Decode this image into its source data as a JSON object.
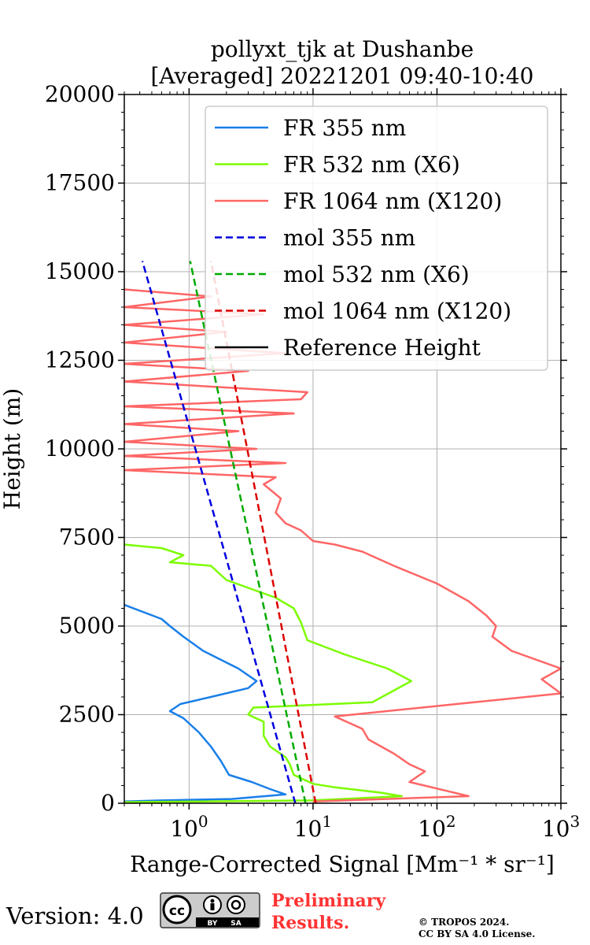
{
  "chart_data": {
    "type": "line",
    "title": [
      "pollyxt_tjk at Dushanbe",
      "[Averaged] 20221201 09:40-10:40"
    ],
    "xlabel": "Range-Corrected Signal",
    "xlabel_unit": "[Mm⁻¹ * sr⁻¹]",
    "ylabel": "Height (m)",
    "xscale": "log",
    "xlim": [
      0.3,
      1000
    ],
    "ylim": [
      0,
      20000
    ],
    "grid": true,
    "legend_position": "top-right",
    "yticks": [
      "0",
      "2500",
      "5000",
      "7500",
      "10000",
      "12500",
      "15000",
      "17500",
      "20000"
    ],
    "xticks": [
      {
        "base": "10",
        "exp": "0"
      },
      {
        "base": "10",
        "exp": "1"
      },
      {
        "base": "10",
        "exp": "2"
      },
      {
        "base": "10",
        "exp": "3"
      }
    ],
    "series": [
      {
        "name": "FR 355 nm",
        "color": "#1a7fe8",
        "style": "solid",
        "points": [
          [
            0.3,
            50
          ],
          [
            0.6,
            80
          ],
          [
            2.2,
            120
          ],
          [
            6.0,
            250
          ],
          [
            4.5,
            400
          ],
          [
            3.2,
            600
          ],
          [
            2.1,
            800
          ],
          [
            1.8,
            1200
          ],
          [
            1.5,
            1600
          ],
          [
            1.2,
            2000
          ],
          [
            0.9,
            2400
          ],
          [
            0.7,
            2600
          ],
          [
            0.85,
            2800
          ],
          [
            1.5,
            3000
          ],
          [
            3.0,
            3250
          ],
          [
            3.5,
            3450
          ],
          [
            2.5,
            3800
          ],
          [
            1.3,
            4300
          ],
          [
            0.9,
            4700
          ],
          [
            0.7,
            5000
          ],
          [
            0.6,
            5200
          ],
          [
            0.3,
            5600
          ]
        ]
      },
      {
        "name": "FR 532 nm (X6)",
        "color": "#7cfc00",
        "style": "solid",
        "points": [
          [
            0.3,
            30
          ],
          [
            10,
            80
          ],
          [
            52,
            200
          ],
          [
            35,
            300
          ],
          [
            15,
            450
          ],
          [
            10,
            550
          ],
          [
            7,
            800
          ],
          [
            6.5,
            1100
          ],
          [
            6,
            1300
          ],
          [
            4.5,
            1600
          ],
          [
            4,
            1900
          ],
          [
            4,
            2300
          ],
          [
            3,
            2500
          ],
          [
            3.3,
            2700
          ],
          [
            30,
            2850
          ],
          [
            62,
            3450
          ],
          [
            40,
            3800
          ],
          [
            18,
            4200
          ],
          [
            9,
            4600
          ],
          [
            8,
            5100
          ],
          [
            7,
            5500
          ],
          [
            5,
            5800
          ],
          [
            2,
            6300
          ],
          [
            1.5,
            6700
          ],
          [
            0.7,
            6800
          ],
          [
            0.9,
            7000
          ],
          [
            0.6,
            7200
          ],
          [
            0.3,
            7300
          ]
        ]
      },
      {
        "name": "FR 1064 nm (X120)",
        "color": "#ff6666",
        "style": "solid",
        "points": [
          [
            10,
            50
          ],
          [
            180,
            200
          ],
          [
            120,
            350
          ],
          [
            60,
            600
          ],
          [
            80,
            900
          ],
          [
            60,
            1100
          ],
          [
            45,
            1400
          ],
          [
            28,
            1800
          ],
          [
            25,
            2100
          ],
          [
            15,
            2450
          ],
          [
            1000,
            3100
          ],
          [
            700,
            3500
          ],
          [
            1000,
            3800
          ],
          [
            400,
            4300
          ],
          [
            280,
            4700
          ],
          [
            300,
            5000
          ],
          [
            250,
            5300
          ],
          [
            180,
            5700
          ],
          [
            100,
            6200
          ],
          [
            45,
            6700
          ],
          [
            25,
            7100
          ],
          [
            15,
            7300
          ],
          [
            10,
            7400
          ],
          [
            8,
            7700
          ],
          [
            6,
            7900
          ],
          [
            5,
            8200
          ],
          [
            5.5,
            8600
          ],
          [
            4,
            9000
          ],
          [
            5,
            9200
          ],
          [
            0.3,
            9400
          ],
          [
            6,
            9600
          ],
          [
            0.3,
            9800
          ],
          [
            3.5,
            10000
          ],
          [
            0.3,
            10200
          ],
          [
            2.5,
            10500
          ],
          [
            0.3,
            10700
          ],
          [
            7,
            11000
          ],
          [
            0.3,
            11200
          ],
          [
            8,
            11400
          ],
          [
            9,
            11600
          ],
          [
            0.3,
            11900
          ],
          [
            3,
            12200
          ],
          [
            0.3,
            12400
          ],
          [
            6,
            12700
          ],
          [
            0.3,
            13000
          ],
          [
            2,
            13300
          ],
          [
            0.3,
            13500
          ],
          [
            4,
            13800
          ],
          [
            0.3,
            14000
          ],
          [
            1.5,
            14300
          ],
          [
            0.3,
            14500
          ]
        ]
      },
      {
        "name": "mol 355 nm",
        "color": "#0000dd",
        "style": "dashed",
        "points": [
          [
            7.2,
            0
          ],
          [
            0.42,
            15300
          ]
        ]
      },
      {
        "name": "mol 532 nm (X6)",
        "color": "#00aa00",
        "style": "dashed",
        "points": [
          [
            8.7,
            0
          ],
          [
            1.02,
            15300
          ]
        ]
      },
      {
        "name": "mol 1064 nm (X120)",
        "color": "#dd0000",
        "style": "dashed",
        "points": [
          [
            10.5,
            0
          ],
          [
            1.5,
            15300
          ]
        ]
      },
      {
        "name": "Reference Height",
        "color": "#000000",
        "style": "solid",
        "points": []
      }
    ]
  },
  "footer": {
    "version_label": "Version: 4.0",
    "preliminary_line1": "Preliminary",
    "preliminary_line2": "Results.",
    "copyright_line1": "© TROPOS 2024.",
    "copyright_line2": "CC BY SA 4.0 License.",
    "license_badge": {
      "cc": "cc",
      "by": "BY",
      "sa": "SA",
      "color": "#cccccc"
    }
  }
}
